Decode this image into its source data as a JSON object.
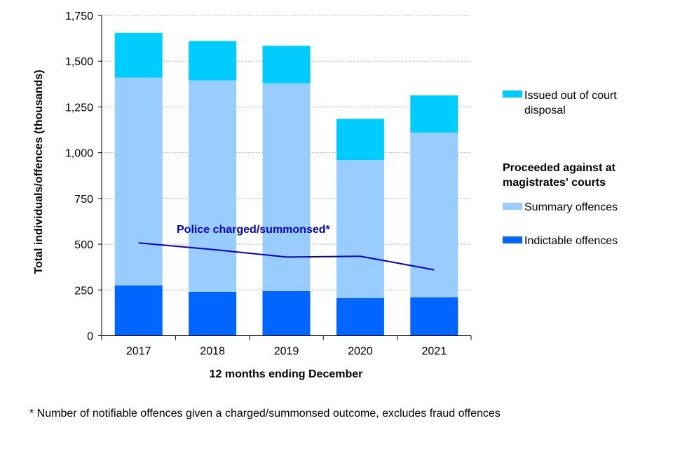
{
  "chart_data": {
    "type": "bar",
    "stacked": true,
    "categories": [
      "2017",
      "2018",
      "2019",
      "2020",
      "2021"
    ],
    "series": [
      {
        "name": "Indictable offences",
        "color": "#0066ff",
        "values": [
          275,
          240,
          244,
          206,
          210
        ]
      },
      {
        "name": "Summary offences",
        "color": "#99ccff",
        "values": [
          1135,
          1155,
          1135,
          754,
          900
        ]
      },
      {
        "name": "Issued out of court disposal",
        "color": "#00ccff",
        "values": [
          245,
          215,
          205,
          225,
          203
        ]
      }
    ],
    "line_series": {
      "name": "Police charged/summonsed*",
      "color": "#0000cc",
      "values": [
        507,
        471,
        430,
        434,
        360
      ]
    },
    "xlabel": "12 months ending December",
    "ylabel": "Total individuals/offences (thousands)",
    "ylim": [
      0,
      1750
    ],
    "yticks": [
      "0",
      "250",
      "500",
      "750",
      "1,000",
      "1,250",
      "1,500",
      "1,750"
    ],
    "grid": true,
    "legend_placement": "right",
    "legend_heading": "Proceeded against at magistrates' courts",
    "footnote": "* Number of notifiable offences given a charged/summonsed outcome, excludes fraud offences"
  }
}
